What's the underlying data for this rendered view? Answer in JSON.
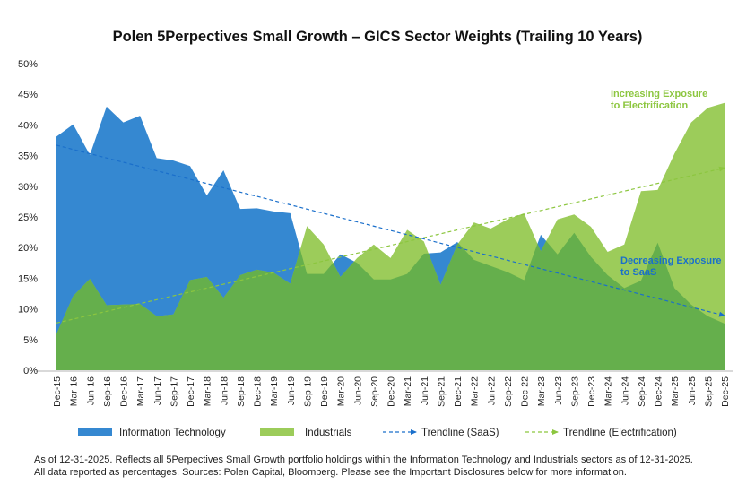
{
  "chart_data": {
    "type": "area",
    "title": "Polen 5Perpectives Small Growth – GICS Sector Weights (Trailing 10 Years)",
    "ylim": [
      0,
      50
    ],
    "yticks": [
      "0%",
      "5%",
      "10%",
      "15%",
      "20%",
      "25%",
      "30%",
      "35%",
      "40%",
      "45%",
      "50%"
    ],
    "grid": false,
    "legend_position": "bottom",
    "categories": [
      "Dec-15",
      "Mar-16",
      "Jun-16",
      "Sep-16",
      "Dec-16",
      "Mar-17",
      "Jun-17",
      "Sep-17",
      "Dec-17",
      "Mar-18",
      "Jun-18",
      "Sep-18",
      "Dec-18",
      "Mar-19",
      "Jun-19",
      "Sep-19",
      "Dec-19",
      "Mar-20",
      "Jun-20",
      "Sep-20",
      "Dec-20",
      "Mar-21",
      "Jun-21",
      "Sep-21",
      "Dec-21",
      "Mar-22",
      "Jun-22",
      "Sep-22",
      "Dec-22",
      "Mar-23",
      "Jun-23",
      "Sep-23",
      "Dec-23",
      "Mar-24",
      "Jun-24",
      "Sep-24",
      "Dec-24",
      "Mar-25",
      "Jun-25",
      "Sep-25",
      "Dec-25"
    ],
    "series": [
      {
        "name": "Information Technology",
        "color": "#3588d1",
        "values": [
          38.1,
          40.1,
          35.1,
          43.0,
          40.4,
          41.5,
          34.6,
          34.2,
          33.3,
          28.5,
          32.6,
          26.3,
          26.4,
          25.9,
          25.6,
          15.7,
          15.7,
          18.9,
          17.5,
          14.8,
          14.8,
          15.7,
          19.0,
          19.2,
          20.9,
          18.0,
          17.0,
          16.0,
          14.7,
          22.1,
          18.9,
          22.4,
          18.5,
          15.5,
          13.4,
          14.6,
          20.8,
          13.4,
          10.7,
          8.8,
          7.6
        ]
      },
      {
        "name": "Industrials",
        "color": "#9ccc5a",
        "values": [
          5.9,
          12.1,
          14.9,
          10.6,
          10.7,
          10.8,
          8.8,
          9.1,
          14.7,
          15.2,
          11.8,
          15.5,
          16.4,
          15.9,
          14.1,
          23.5,
          20.5,
          15.2,
          18.3,
          20.5,
          18.3,
          22.9,
          21.0,
          13.9,
          20.5,
          24.1,
          23.1,
          24.6,
          25.6,
          19.4,
          24.6,
          25.4,
          23.4,
          19.3,
          20.5,
          29.2,
          29.4,
          35.3,
          40.4,
          42.8,
          43.6
        ]
      }
    ],
    "overlap_color": "#65af4c",
    "trendlines": [
      {
        "name": "Trendline (SaaS)",
        "color": "#1a6fcb",
        "start": 36.7,
        "end": 8.9
      },
      {
        "name": "Trendline (Electrification)",
        "color": "#8cc63f",
        "start": 7.7,
        "end": 33.0
      }
    ],
    "annotations": [
      {
        "lines": [
          "Increasing Exposure",
          "to Electrification"
        ],
        "color": "#8cc63f"
      },
      {
        "lines": [
          "Decreasing Exposure",
          "to SaaS"
        ],
        "color": "#1a6fcb"
      }
    ]
  },
  "footnote": [
    "As of 12-31-2025. Reflects all 5Perpectives Small Growth portfolio holdings within the Information Technology and Industrials sectors as of 12-31-2025.",
    "All data reported as percentages. Sources: Polen Capital, Bloomberg. Please see the Important Disclosures below for more information."
  ]
}
